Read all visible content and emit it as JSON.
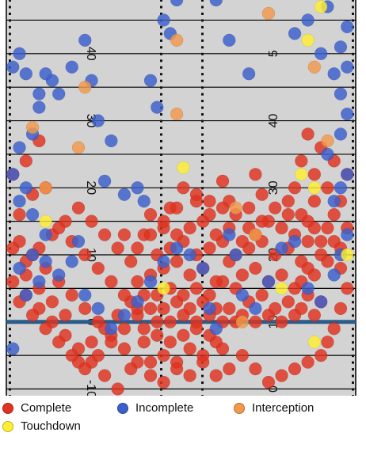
{
  "chart_data": {
    "type": "scatter",
    "title": "",
    "xlabel": "",
    "ylabel": "",
    "field": {
      "ylim": [
        -11,
        48
      ],
      "xlim": [
        0,
        53.3
      ],
      "line_of_scrimmage": 0,
      "yard_line_labels_left": [
        "-10",
        "0",
        "10",
        "20",
        "30",
        "40"
      ],
      "yard_line_labels_right": [
        "0",
        "10",
        "20",
        "30",
        "40",
        "5"
      ],
      "colors": {
        "turf": "#d3d3d3",
        "yard_line": "#000000",
        "line_of_scrimmage": "#2b5c8a"
      }
    },
    "series": [
      {
        "name": "Complete",
        "color": "#e0321f",
        "points": [
          [
            22,
            -6
          ],
          [
            24,
            -5
          ],
          [
            26,
            -6
          ],
          [
            28,
            -4
          ],
          [
            30,
            -5
          ],
          [
            32,
            -3
          ],
          [
            23,
            -2
          ],
          [
            25,
            -3
          ],
          [
            27,
            -2
          ],
          [
            29,
            -1
          ],
          [
            31,
            -2
          ],
          [
            33,
            -4
          ],
          [
            21,
            -1
          ],
          [
            23,
            0
          ],
          [
            25,
            0
          ],
          [
            27,
            1
          ],
          [
            29,
            0
          ],
          [
            31,
            1
          ],
          [
            33,
            0
          ],
          [
            35,
            0
          ],
          [
            20,
            1
          ],
          [
            22,
            2
          ],
          [
            24,
            2
          ],
          [
            26,
            3
          ],
          [
            28,
            2
          ],
          [
            30,
            3
          ],
          [
            32,
            2
          ],
          [
            34,
            2
          ],
          [
            36,
            1
          ],
          [
            38,
            0
          ],
          [
            40,
            1
          ],
          [
            42,
            0
          ],
          [
            44,
            1
          ],
          [
            19,
            3
          ],
          [
            21,
            4
          ],
          [
            23,
            4
          ],
          [
            25,
            5
          ],
          [
            27,
            4
          ],
          [
            29,
            5
          ],
          [
            31,
            4
          ],
          [
            33,
            6
          ],
          [
            35,
            5
          ],
          [
            37,
            3
          ],
          [
            39,
            4
          ],
          [
            41,
            2
          ],
          [
            43,
            3
          ],
          [
            45,
            2
          ],
          [
            46,
            4
          ],
          [
            47,
            1
          ],
          [
            48,
            3
          ],
          [
            20,
            6
          ],
          [
            22,
            7
          ],
          [
            24,
            8
          ],
          [
            26,
            9
          ],
          [
            28,
            7
          ],
          [
            30,
            8
          ],
          [
            32,
            6
          ],
          [
            34,
            9
          ],
          [
            36,
            7
          ],
          [
            38,
            8
          ],
          [
            40,
            6
          ],
          [
            42,
            7
          ],
          [
            44,
            5
          ],
          [
            45,
            6
          ],
          [
            46,
            8
          ],
          [
            47,
            7
          ],
          [
            23,
            10
          ],
          [
            25,
            11
          ],
          [
            27,
            12
          ],
          [
            29,
            10
          ],
          [
            31,
            11
          ],
          [
            33,
            12
          ],
          [
            35,
            10
          ],
          [
            37,
            11
          ],
          [
            39,
            12
          ],
          [
            41,
            10
          ],
          [
            43,
            11
          ],
          [
            45,
            9
          ],
          [
            21,
            13
          ],
          [
            24,
            14
          ],
          [
            26,
            13
          ],
          [
            28,
            14
          ],
          [
            30,
            15
          ],
          [
            32,
            13
          ],
          [
            34,
            14
          ],
          [
            36,
            12
          ],
          [
            38,
            13
          ],
          [
            40,
            15
          ],
          [
            42,
            14
          ],
          [
            44,
            13
          ],
          [
            46,
            12
          ],
          [
            48,
            10
          ],
          [
            22,
            16
          ],
          [
            25,
            17
          ],
          [
            29,
            18
          ],
          [
            31,
            16
          ],
          [
            34,
            18
          ],
          [
            37,
            17
          ],
          [
            39,
            19
          ],
          [
            43,
            16
          ],
          [
            46,
            15
          ],
          [
            49,
            14
          ],
          [
            27,
            20
          ],
          [
            33,
            21
          ],
          [
            38,
            22
          ],
          [
            44,
            20
          ],
          [
            47,
            18
          ],
          [
            50,
            16
          ],
          [
            50,
            12
          ],
          [
            51,
            8
          ],
          [
            52,
            5
          ],
          [
            51,
            2
          ],
          [
            50,
            -1
          ],
          [
            49,
            -3
          ],
          [
            48,
            -5
          ],
          [
            46,
            -6
          ],
          [
            44,
            -7
          ],
          [
            42,
            -8
          ],
          [
            40,
            -9
          ],
          [
            38,
            -7
          ],
          [
            36,
            -5
          ],
          [
            34,
            -7
          ],
          [
            32,
            -8
          ],
          [
            30,
            -6
          ],
          [
            28,
            -8
          ],
          [
            26,
            -7
          ],
          [
            24,
            -9
          ],
          [
            22,
            -8
          ],
          [
            20,
            -6
          ],
          [
            18,
            -4
          ],
          [
            16,
            -2
          ],
          [
            14,
            0
          ],
          [
            12,
            2
          ],
          [
            10,
            4
          ],
          [
            8,
            6
          ],
          [
            6,
            8
          ],
          [
            4,
            10
          ],
          [
            2,
            12
          ],
          [
            1,
            6
          ],
          [
            3,
            4
          ],
          [
            5,
            2
          ],
          [
            7,
            0
          ],
          [
            9,
            -2
          ],
          [
            11,
            -4
          ],
          [
            13,
            -6
          ],
          [
            15,
            -8
          ],
          [
            17,
            -10
          ],
          [
            19,
            -7
          ],
          [
            21,
            -3
          ],
          [
            11,
            -6
          ],
          [
            13,
            -3
          ],
          [
            15,
            -1
          ],
          [
            17,
            1
          ],
          [
            9,
            1
          ],
          [
            7,
            3
          ],
          [
            5,
            5
          ],
          [
            3,
            7
          ],
          [
            2,
            3
          ],
          [
            4,
            1
          ],
          [
            6,
            -1
          ],
          [
            8,
            -3
          ],
          [
            10,
            -5
          ],
          [
            12,
            -7
          ],
          [
            14,
            -5
          ],
          [
            16,
            -3
          ],
          [
            18,
            -1
          ],
          [
            19,
            9
          ],
          [
            17,
            11
          ],
          [
            15,
            13
          ],
          [
            13,
            15
          ],
          [
            11,
            17
          ],
          [
            9,
            15
          ],
          [
            7,
            13
          ],
          [
            5,
            11
          ],
          [
            3,
            9
          ],
          [
            1,
            11
          ],
          [
            2,
            16
          ],
          [
            4,
            19
          ],
          [
            6,
            20
          ],
          [
            1,
            22
          ],
          [
            3,
            24
          ],
          [
            5,
            27
          ],
          [
            8,
            14
          ],
          [
            10,
            12
          ],
          [
            12,
            10
          ],
          [
            14,
            8
          ],
          [
            16,
            6
          ],
          [
            18,
            4
          ],
          [
            20,
            2
          ],
          [
            45,
            24
          ],
          [
            47,
            22
          ],
          [
            49,
            20
          ],
          [
            51,
            18
          ],
          [
            48,
            26
          ],
          [
            46,
            28
          ],
          [
            50,
            24
          ],
          [
            52,
            22
          ],
          [
            52,
            14
          ],
          [
            51,
            11
          ],
          [
            49,
            9
          ],
          [
            48,
            12
          ],
          [
            47,
            14
          ],
          [
            45,
            16
          ],
          [
            43,
            18
          ],
          [
            41,
            17
          ],
          [
            39,
            15
          ],
          [
            37,
            14
          ],
          [
            35,
            16
          ],
          [
            33,
            17
          ],
          [
            31,
            18
          ],
          [
            29,
            19
          ],
          [
            26,
            17
          ],
          [
            24,
            15
          ],
          [
            22,
            13
          ],
          [
            20,
            11
          ],
          [
            18,
            13
          ]
        ]
      },
      {
        "name": "Incomplete",
        "color": "#3a5fcd",
        "points": [
          [
            1,
            -4
          ],
          [
            3,
            4
          ],
          [
            5,
            6
          ],
          [
            2,
            8
          ],
          [
            4,
            10
          ],
          [
            6,
            9
          ],
          [
            8,
            7
          ],
          [
            10,
            9
          ],
          [
            11,
            12
          ],
          [
            12,
            4
          ],
          [
            14,
            2
          ],
          [
            16,
            -1
          ],
          [
            18,
            1
          ],
          [
            20,
            3
          ],
          [
            22,
            6
          ],
          [
            24,
            9
          ],
          [
            26,
            11
          ],
          [
            28,
            10
          ],
          [
            30,
            8
          ],
          [
            31,
            2
          ],
          [
            32,
            -1
          ],
          [
            34,
            13
          ],
          [
            35,
            10
          ],
          [
            36,
            4
          ],
          [
            38,
            2
          ],
          [
            40,
            6
          ],
          [
            42,
            11
          ],
          [
            44,
            12
          ],
          [
            46,
            5
          ],
          [
            48,
            3
          ],
          [
            50,
            7
          ],
          [
            51,
            10
          ],
          [
            52,
            13
          ],
          [
            52,
            22
          ],
          [
            51,
            20
          ],
          [
            50,
            18
          ],
          [
            49,
            25
          ],
          [
            51,
            28
          ],
          [
            52,
            31
          ],
          [
            51,
            34
          ],
          [
            50,
            37
          ],
          [
            52,
            38
          ],
          [
            51,
            41
          ],
          [
            52,
            44
          ],
          [
            49,
            47
          ],
          [
            48,
            40
          ],
          [
            46,
            45
          ],
          [
            44,
            43
          ],
          [
            37,
            37
          ],
          [
            34,
            42
          ],
          [
            32,
            48
          ],
          [
            26,
            48
          ],
          [
            25,
            43
          ],
          [
            24,
            45
          ],
          [
            22,
            36
          ],
          [
            23,
            32
          ],
          [
            21,
            18
          ],
          [
            20,
            20
          ],
          [
            18,
            19
          ],
          [
            16,
            27
          ],
          [
            15,
            21
          ],
          [
            14,
            30
          ],
          [
            13,
            36
          ],
          [
            12,
            42
          ],
          [
            10,
            38
          ],
          [
            8,
            34
          ],
          [
            7,
            36
          ],
          [
            6,
            37
          ],
          [
            5,
            32
          ],
          [
            4,
            28
          ],
          [
            2,
            26
          ],
          [
            1,
            22
          ],
          [
            3,
            20
          ],
          [
            2,
            18
          ],
          [
            4,
            16
          ],
          [
            6,
            13
          ],
          [
            1,
            38
          ],
          [
            3,
            37
          ],
          [
            5,
            34
          ],
          [
            2,
            40
          ]
        ]
      },
      {
        "name": "Interception",
        "color": "#f2994a",
        "points": [
          [
            4,
            29
          ],
          [
            11,
            26
          ],
          [
            12,
            35
          ],
          [
            6,
            20
          ],
          [
            26,
            42
          ],
          [
            35,
            17
          ],
          [
            38,
            13
          ],
          [
            36,
            0
          ],
          [
            40,
            46
          ],
          [
            47,
            38
          ],
          [
            49,
            27
          ],
          [
            26,
            31
          ]
        ]
      },
      {
        "name": "Touchdown",
        "color": "#ffee33",
        "points": [
          [
            6,
            15
          ],
          [
            24,
            5
          ],
          [
            27,
            23
          ],
          [
            42,
            5
          ],
          [
            45,
            22
          ],
          [
            47,
            20
          ],
          [
            46,
            42
          ],
          [
            48,
            47
          ],
          [
            47,
            -3
          ],
          [
            52,
            10
          ]
        ]
      }
    ],
    "legend": {
      "placement": "bottom",
      "entries": [
        "Complete",
        "Incomplete",
        "Interception",
        "Touchdown"
      ]
    }
  }
}
